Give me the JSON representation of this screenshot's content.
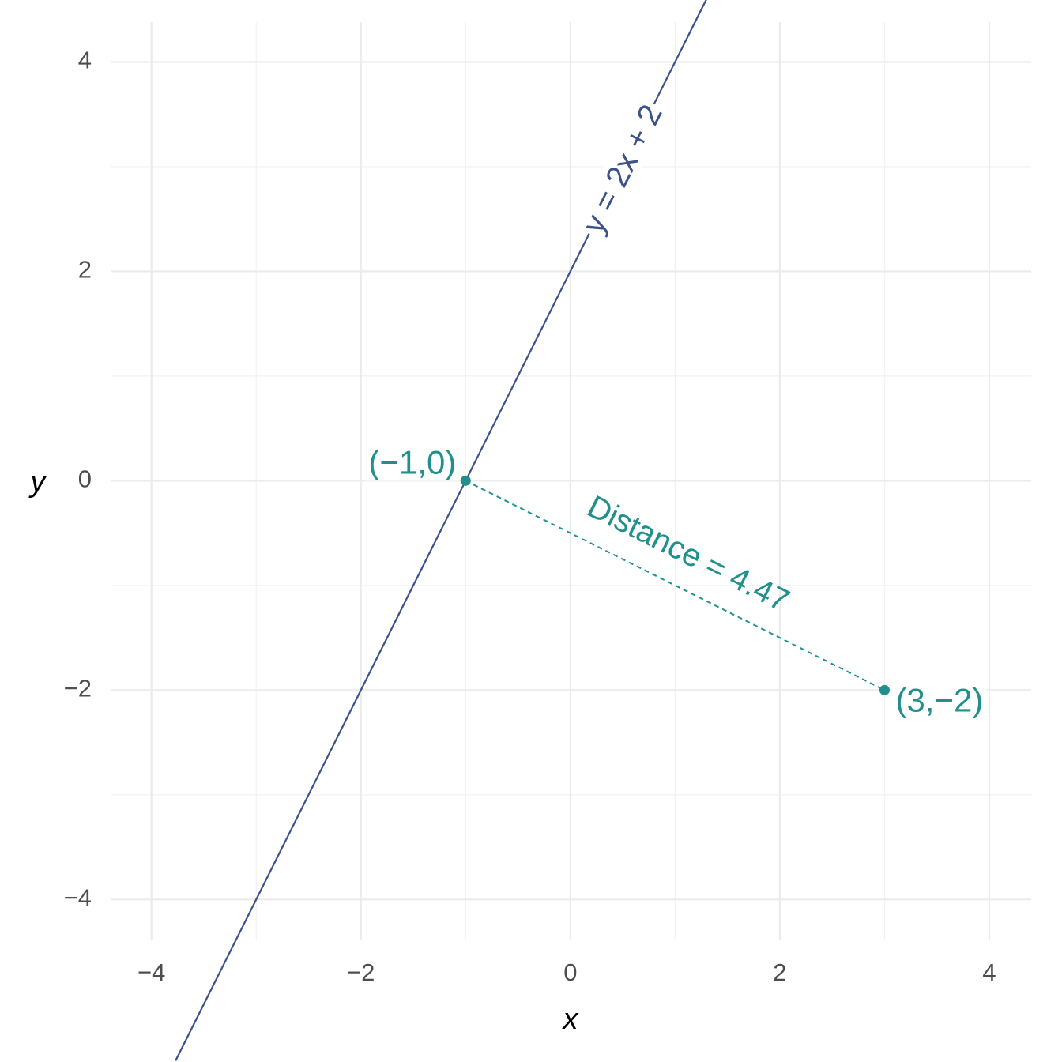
{
  "chart_data": {
    "type": "line",
    "xlabel": "x",
    "ylabel": "y",
    "xlim": [
      -4.39,
      4.4
    ],
    "ylim": [
      -4.39,
      4.38
    ],
    "xticks": [
      -4,
      -2,
      0,
      2,
      4
    ],
    "yticks": [
      -4,
      -2,
      0,
      2,
      4
    ],
    "xminor": [
      -3,
      -1,
      1,
      3
    ],
    "yminor": [
      -3,
      -1,
      1,
      3
    ],
    "grid": true,
    "series": [
      {
        "name": "y = 2x + 2",
        "color": "#3b528b",
        "x": [
          -3.77,
          1.3
        ],
        "values": [
          -5.54,
          4.6
        ]
      },
      {
        "name": "points",
        "color": "#21908c",
        "x": [
          -1,
          3
        ],
        "values": [
          0,
          -2
        ],
        "value_labels": [
          "(−1,0)",
          "(3,−2)"
        ]
      }
    ],
    "annotations": [
      {
        "text": "Distance = 4.47"
      }
    ]
  }
}
